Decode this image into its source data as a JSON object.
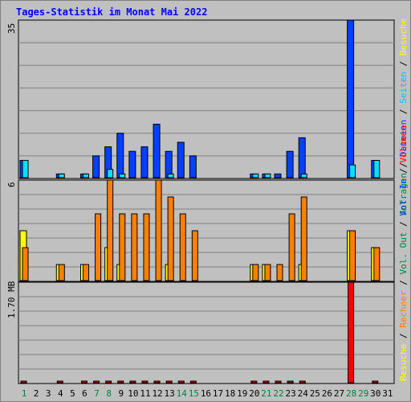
{
  "title": "Tages-Statistik im Monat Mai 2022",
  "panels": {
    "top": {
      "max_label": "35"
    },
    "mid": {
      "max_label": "6"
    },
    "bottom": {
      "max_label": "1.70 MB"
    }
  },
  "legends": {
    "top": [
      {
        "text": "Anfragen",
        "color": "#008040"
      },
      {
        "text": " / ",
        "color": "#000000"
      },
      {
        "text": "Dateien",
        "color": "#0040ff"
      },
      {
        "text": " / ",
        "color": "#000000"
      },
      {
        "text": "Seiten",
        "color": "#00c0ff"
      },
      {
        "text": " / ",
        "color": "#000000"
      },
      {
        "text": "Besuche",
        "color": "#ffff00"
      }
    ],
    "mid": [
      {
        "text": "Besuche",
        "color": "#ffff00"
      },
      {
        "text": " / ",
        "color": "#000000"
      },
      {
        "text": "Rechner",
        "color": "#ff8000"
      },
      {
        "text": " / ",
        "color": "#000000"
      },
      {
        "text": "Vol. Out",
        "color": "#008040"
      },
      {
        "text": " / ",
        "color": "#000000"
      },
      {
        "text": "Vol. In",
        "color": "#0040ff"
      },
      {
        "text": " / ",
        "color": "#000000"
      },
      {
        "text": "Volumen",
        "color": "#ff0000"
      }
    ]
  },
  "colors": {
    "anfragen": "#008040",
    "dateien": "#0040ff",
    "seiten": "#00e0ff",
    "besuche": "#ffff00",
    "rechner": "#ff8000",
    "volumen": "#ff0000",
    "weekend": "#008040",
    "weekday": "#000000"
  },
  "chart_data": [
    {
      "type": "bar",
      "name": "Anfragen / Dateien / Seiten",
      "categories": [
        "1",
        "2",
        "3",
        "4",
        "5",
        "6",
        "7",
        "8",
        "9",
        "10",
        "11",
        "12",
        "13",
        "14",
        "15",
        "16",
        "17",
        "18",
        "19",
        "20",
        "21",
        "22",
        "23",
        "24",
        "25",
        "26",
        "27",
        "28",
        "29",
        "30",
        "31"
      ],
      "weekend_days": [
        1,
        7,
        8,
        14,
        15,
        21,
        22,
        28,
        29
      ],
      "ylim": [
        0,
        35
      ],
      "series": [
        {
          "name": "Anfragen",
          "values": [
            4,
            0,
            0,
            1,
            0,
            1,
            5,
            7,
            10,
            6,
            7,
            12,
            6,
            8,
            5,
            0,
            0,
            0,
            0,
            1,
            1,
            1,
            6,
            9,
            0,
            0,
            0,
            35,
            0,
            4,
            0
          ]
        },
        {
          "name": "Dateien",
          "values": [
            4,
            0,
            0,
            1,
            0,
            1,
            5,
            7,
            10,
            6,
            7,
            12,
            6,
            8,
            5,
            0,
            0,
            0,
            0,
            1,
            1,
            1,
            6,
            9,
            0,
            0,
            0,
            35,
            0,
            4,
            0
          ]
        },
        {
          "name": "Seiten",
          "values": [
            4,
            0,
            0,
            1,
            0,
            1,
            0,
            2,
            1,
            0,
            0,
            0,
            1,
            0,
            0,
            0,
            0,
            0,
            0,
            1,
            1,
            0,
            0,
            1,
            0,
            0,
            0,
            3,
            0,
            4,
            0
          ]
        }
      ]
    },
    {
      "type": "bar",
      "name": "Besuche / Rechner",
      "categories": [
        "1",
        "2",
        "3",
        "4",
        "5",
        "6",
        "7",
        "8",
        "9",
        "10",
        "11",
        "12",
        "13",
        "14",
        "15",
        "16",
        "17",
        "18",
        "19",
        "20",
        "21",
        "22",
        "23",
        "24",
        "25",
        "26",
        "27",
        "28",
        "29",
        "30",
        "31"
      ],
      "ylim": [
        0,
        6
      ],
      "series": [
        {
          "name": "Besuche",
          "values": [
            3,
            0,
            0,
            1,
            0,
            1,
            0,
            2,
            1,
            0,
            0,
            0,
            1,
            0,
            0,
            0,
            0,
            0,
            0,
            1,
            1,
            0,
            0,
            1,
            0,
            0,
            0,
            3,
            0,
            2,
            0
          ]
        },
        {
          "name": "Rechner",
          "values": [
            2,
            0,
            0,
            1,
            0,
            1,
            4,
            6,
            4,
            4,
            4,
            6,
            5,
            4,
            3,
            0,
            0,
            0,
            0,
            1,
            1,
            1,
            4,
            5,
            0,
            0,
            0,
            3,
            0,
            2,
            0
          ]
        }
      ]
    },
    {
      "type": "bar",
      "name": "Volumen",
      "categories": [
        "1",
        "2",
        "3",
        "4",
        "5",
        "6",
        "7",
        "8",
        "9",
        "10",
        "11",
        "12",
        "13",
        "14",
        "15",
        "16",
        "17",
        "18",
        "19",
        "20",
        "21",
        "22",
        "23",
        "24",
        "25",
        "26",
        "27",
        "28",
        "29",
        "30",
        "31"
      ],
      "unit": "MB",
      "ylim": [
        0,
        1.7
      ],
      "series": [
        {
          "name": "Volumen",
          "values": [
            0.04,
            0,
            0,
            0.01,
            0,
            0.01,
            0.01,
            0.03,
            0.02,
            0.01,
            0.01,
            0.03,
            0.01,
            0.01,
            0.01,
            0,
            0,
            0,
            0,
            0.01,
            0.01,
            0.01,
            0.01,
            0.03,
            0,
            0,
            0,
            1.7,
            0,
            0.01,
            0
          ]
        }
      ]
    }
  ]
}
